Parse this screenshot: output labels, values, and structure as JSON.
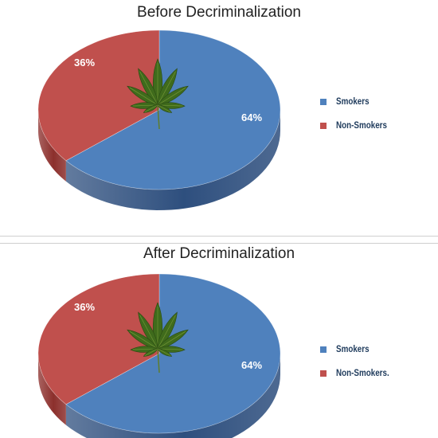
{
  "colors": {
    "smokers_top": "#4f81bd",
    "smokers_side": "#2e4f7e",
    "non_smokers_top": "#c0504d",
    "non_smokers_side": "#8c2f2c",
    "label_text": "#ffffff",
    "legend_text": "#1f3b5c"
  },
  "icon": "cannabis-leaf-icon",
  "chart_data": [
    {
      "type": "pie",
      "title": "Before Decriminalization",
      "three_d": true,
      "legend_position": "right",
      "slices": [
        {
          "label": "Smokers",
          "value": 64,
          "value_label": "64%"
        },
        {
          "label": "Non-Smokers",
          "value": 36,
          "value_label": "36%"
        }
      ]
    },
    {
      "type": "pie",
      "title": "After Decriminalization",
      "three_d": true,
      "legend_position": "right",
      "slices": [
        {
          "label": "Smokers",
          "value": 64,
          "value_label": "64%"
        },
        {
          "label": "Non-Smokers.",
          "value": 36,
          "value_label": "36%"
        }
      ]
    }
  ]
}
